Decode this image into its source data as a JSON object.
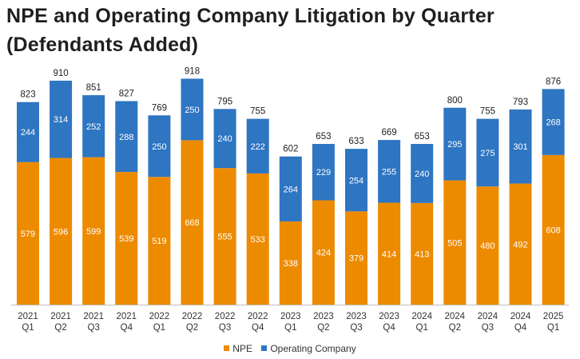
{
  "chart_data": {
    "type": "bar",
    "stacked": true,
    "title_lines": [
      "NPE and Operating Company Litigation by Quarter",
      "(Defendants Added)"
    ],
    "categories": [
      [
        "2021",
        "Q1"
      ],
      [
        "2021",
        "Q2"
      ],
      [
        "2021",
        "Q3"
      ],
      [
        "2021",
        "Q4"
      ],
      [
        "2022",
        "Q1"
      ],
      [
        "2022",
        "Q2"
      ],
      [
        "2022",
        "Q3"
      ],
      [
        "2022",
        "Q4"
      ],
      [
        "2023",
        "Q1"
      ],
      [
        "2023",
        "Q2"
      ],
      [
        "2023",
        "Q3"
      ],
      [
        "2023",
        "Q4"
      ],
      [
        "2024",
        "Q1"
      ],
      [
        "2024",
        "Q2"
      ],
      [
        "2024",
        "Q3"
      ],
      [
        "2024",
        "Q4"
      ],
      [
        "2025",
        "Q1"
      ]
    ],
    "series": [
      {
        "name": "NPE",
        "color": "#ed8b00",
        "values": [
          579,
          596,
          599,
          539,
          519,
          668,
          555,
          533,
          338,
          424,
          379,
          414,
          413,
          505,
          480,
          492,
          608
        ]
      },
      {
        "name": "Operating Company",
        "color": "#2e75c2",
        "values": [
          244,
          314,
          252,
          288,
          250,
          250,
          240,
          222,
          264,
          229,
          254,
          255,
          240,
          295,
          275,
          301,
          268
        ]
      }
    ],
    "totals": [
      823,
      910,
      851,
      827,
      769,
      918,
      795,
      755,
      602,
      653,
      633,
      669,
      653,
      800,
      755,
      793,
      876
    ],
    "ylim": [
      0,
      1000
    ],
    "xlabel": "",
    "ylabel": "",
    "legend_position": "bottom-center",
    "grid": false
  }
}
